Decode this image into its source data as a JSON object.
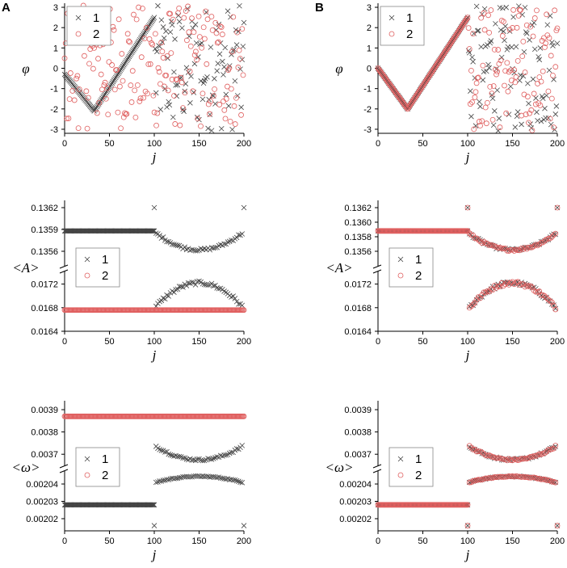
{
  "panel_labels": [
    "A",
    "B"
  ],
  "chart_data": [
    {
      "id": "A-phi",
      "panel": "A",
      "type": "scatter",
      "ylabel": "φ",
      "xlabel": "j",
      "xlim": [
        0,
        200
      ],
      "ylim": [
        -3.2,
        3.2
      ],
      "xticks": [
        "0",
        "50",
        "100",
        "150",
        "200"
      ],
      "yticks": [
        "3",
        "2",
        "1",
        "0",
        "-1",
        "-2",
        "-3"
      ],
      "legend": [
        "1",
        "2"
      ],
      "legend_position": "top-left",
      "description": "series 1 follows a V-shape (min -2.1 at j=33, reaching 2.5 at j=100) then scatters randomly for j>100; series 2 scattered randomly over the full range",
      "series": [
        {
          "name": "1",
          "marker": "x",
          "color": "#444444",
          "v_min": -2.1,
          "v_center": 33,
          "v_start": -0.3,
          "v_end": 2.5,
          "random_after": 100
        },
        {
          "name": "2",
          "marker": "o",
          "color": "#e06060",
          "random_all": true
        }
      ]
    },
    {
      "id": "B-phi",
      "panel": "B",
      "type": "scatter",
      "ylabel": "φ",
      "xlabel": "j",
      "xlim": [
        0,
        200
      ],
      "ylim": [
        -3.2,
        3.2
      ],
      "xticks": [
        "0",
        "50",
        "100",
        "150",
        "200"
      ],
      "yticks": [
        "3",
        "2",
        "1",
        "0",
        "-1",
        "-2",
        "-3"
      ],
      "legend": [
        "1",
        "2"
      ],
      "legend_position": "top-left",
      "description": "both series overlap on a V-shape (min -2.0 at j=33, reaching 2.5 at j=100) then scatter randomly for j>100",
      "series": [
        {
          "name": "1",
          "marker": "x",
          "color": "#444444",
          "v_min": -2.0,
          "v_center": 33,
          "v_start": 0.0,
          "v_end": 2.5,
          "random_after": 100
        },
        {
          "name": "2",
          "marker": "o",
          "color": "#e06060",
          "v_min": -2.0,
          "v_center": 33,
          "v_start": 0.0,
          "v_end": 2.5,
          "random_after": 100
        }
      ]
    },
    {
      "id": "A-amp",
      "panel": "A",
      "type": "scatter",
      "ylabel": "<A>",
      "xlabel": "j",
      "xlim": [
        0,
        200
      ],
      "broken_axis": true,
      "upper_ylim": [
        0.1354,
        0.1363
      ],
      "lower_ylim": [
        0.0164,
        0.0174
      ],
      "upper_yticks": [
        "0.1362",
        "0.1359",
        "0.1356"
      ],
      "lower_yticks": [
        "0.0172",
        "0.0168",
        "0.0164"
      ],
      "xticks": [
        "0",
        "50",
        "100",
        "150",
        "200"
      ],
      "legend": [
        "1",
        "2"
      ],
      "legend_position": "center-left",
      "series": [
        {
          "name": "1",
          "marker": "x",
          "color": "#444444",
          "flat_upper": 0.13588,
          "flat_until": 100,
          "upper_arc": {
            "edge": 0.13585,
            "center": 0.13562
          },
          "lower_arc": {
            "edge": 0.01682,
            "center": 0.01722
          },
          "spikes": [
            {
              "j": 100,
              "v": 0.1362
            },
            {
              "j": 200,
              "v": 0.1362
            }
          ]
        },
        {
          "name": "2",
          "marker": "o",
          "color": "#e06060",
          "flat_lower": 0.01676,
          "range": [
            0,
            200
          ]
        }
      ]
    },
    {
      "id": "B-amp",
      "panel": "B",
      "type": "scatter",
      "ylabel": "<A>",
      "xlabel": "j",
      "xlim": [
        0,
        200
      ],
      "broken_axis": true,
      "upper_ylim": [
        0.1354,
        0.1363
      ],
      "lower_ylim": [
        0.0164,
        0.0174
      ],
      "upper_yticks": [
        "0.1362",
        "0.1360",
        "0.1358",
        "0.1356"
      ],
      "lower_yticks": [
        "0.0172",
        "0.0168",
        "0.0164"
      ],
      "xticks": [
        "0",
        "50",
        "100",
        "150",
        "200"
      ],
      "legend": [
        "1",
        "2"
      ],
      "legend_position": "center-left",
      "series": [
        {
          "name": "1",
          "marker": "x",
          "color": "#444444",
          "flat_upper": 0.13588,
          "flat_until": 100,
          "upper_arc": {
            "edge": 0.13584,
            "center": 0.13562
          },
          "lower_arc": {
            "edge": 0.0168,
            "center": 0.01722
          },
          "spikes": [
            {
              "j": 100,
              "v": 0.1362
            },
            {
              "j": 200,
              "v": 0.1362
            }
          ]
        },
        {
          "name": "2",
          "marker": "o",
          "color": "#e06060",
          "flat_upper": 0.13588,
          "flat_until": 100,
          "upper_arc": {
            "edge": 0.13584,
            "center": 0.13562
          },
          "lower_arc": {
            "edge": 0.0168,
            "center": 0.01722
          },
          "spikes": [
            {
              "j": 100,
              "v": 0.1362
            },
            {
              "j": 200,
              "v": 0.1362
            }
          ]
        }
      ]
    },
    {
      "id": "A-omega",
      "panel": "A",
      "type": "scatter",
      "ylabel": "<ω>",
      "xlabel": "j",
      "xlim": [
        0,
        200
      ],
      "broken_axis": true,
      "upper_ylim": [
        0.00365,
        0.00394
      ],
      "lower_ylim": [
        0.002013,
        0.002047
      ],
      "upper_yticks": [
        "0.0039",
        "0.0038",
        "0.0037"
      ],
      "lower_yticks": [
        "0.00204",
        "0.00203",
        "0.00202"
      ],
      "xticks": [
        "0",
        "50",
        "100",
        "150",
        "200"
      ],
      "legend": [
        "1",
        "2"
      ],
      "legend_position": "center-left",
      "series": [
        {
          "name": "1",
          "marker": "x",
          "color": "#444444",
          "flat_lower": 0.002028,
          "flat_until": 100,
          "upper_arc": {
            "edge": 0.003735,
            "center": 0.003675
          },
          "lower_arc": {
            "edge": 0.002041,
            "center": 0.0020444
          },
          "spikes": [
            {
              "j": 100,
              "v": 0.002016
            },
            {
              "j": 200,
              "v": 0.002016
            }
          ]
        },
        {
          "name": "2",
          "marker": "o",
          "color": "#e06060",
          "flat_upper": 0.00387,
          "range": [
            0,
            200
          ]
        }
      ]
    },
    {
      "id": "B-omega",
      "panel": "B",
      "type": "scatter",
      "ylabel": "<ω>",
      "xlabel": "j",
      "xlim": [
        0,
        200
      ],
      "broken_axis": true,
      "upper_ylim": [
        0.00365,
        0.00394
      ],
      "lower_ylim": [
        0.002013,
        0.002047
      ],
      "upper_yticks": [
        "0.0039",
        "0.0038",
        "0.0037"
      ],
      "lower_yticks": [
        "0.00204",
        "0.00203",
        "0.00202"
      ],
      "xticks": [
        "0",
        "50",
        "100",
        "150",
        "200"
      ],
      "legend": [
        "1",
        "2"
      ],
      "legend_position": "center-left",
      "series": [
        {
          "name": "1",
          "marker": "x",
          "color": "#444444",
          "flat_lower": 0.002028,
          "flat_until": 100,
          "upper_arc": {
            "edge": 0.003735,
            "center": 0.003675
          },
          "lower_arc": {
            "edge": 0.002041,
            "center": 0.0020444
          },
          "spikes": [
            {
              "j": 100,
              "v": 0.002016
            },
            {
              "j": 200,
              "v": 0.002016
            }
          ]
        },
        {
          "name": "2",
          "marker": "o",
          "color": "#e06060",
          "flat_lower": 0.002028,
          "flat_until": 100,
          "upper_arc": {
            "edge": 0.003735,
            "center": 0.003675
          },
          "lower_arc": {
            "edge": 0.002041,
            "center": 0.0020444
          },
          "spikes": [
            {
              "j": 100,
              "v": 0.002016
            },
            {
              "j": 200,
              "v": 0.002016
            }
          ]
        }
      ]
    }
  ]
}
